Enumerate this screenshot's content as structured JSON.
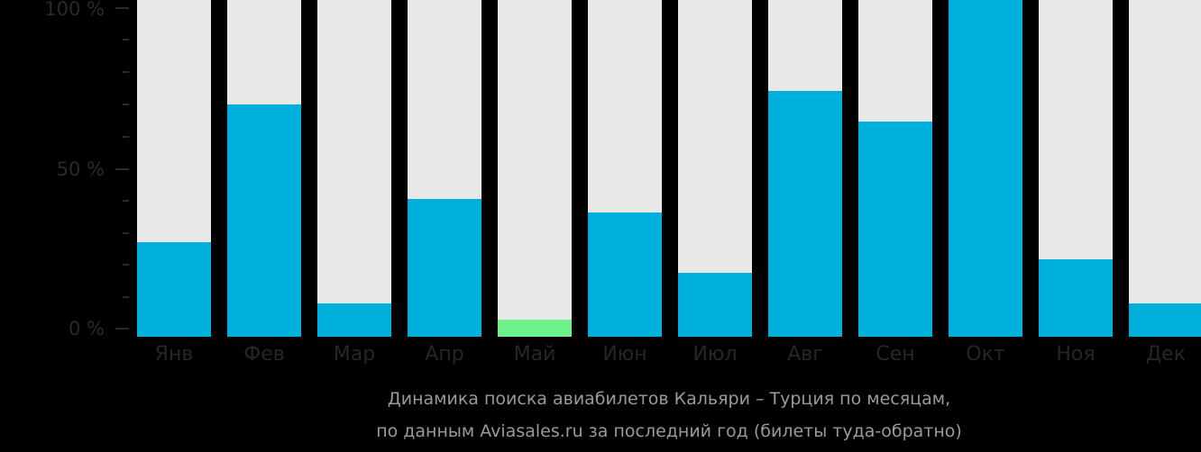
{
  "chart_data": {
    "type": "bar",
    "title": "Динамика поиска авиабилетов Кальяри – Турция по месяцам, по данным Aviasales.ru за последний год (билеты туда-обратно)",
    "xlabel": "",
    "ylabel": "",
    "ylim": [
      0,
      100
    ],
    "yticks": [
      "100 %",
      "50 %",
      "0 %"
    ],
    "categories": [
      "Янв",
      "Фев",
      "Мар",
      "Апр",
      "Май",
      "Июн",
      "Июл",
      "Авг",
      "Сен",
      "Окт",
      "Ноя",
      "Дек"
    ],
    "values": [
      28,
      69,
      10,
      41,
      5,
      37,
      19,
      73,
      64,
      100,
      23,
      10
    ],
    "highlight_index": 4,
    "colors": {
      "bar": "#00b0dc",
      "highlight": "#6ef08a",
      "track": "#e8e8e8",
      "background": "#000000"
    }
  },
  "axis": {
    "y_top": "100 %",
    "y_mid": "50 %",
    "y_bottom": "0 %"
  },
  "caption": {
    "line1": "Динамика поиска авиабилетов Кальяри – Турция по месяцам,",
    "line2": "по данным Aviasales.ru за последний год (билеты туда-обратно)"
  }
}
